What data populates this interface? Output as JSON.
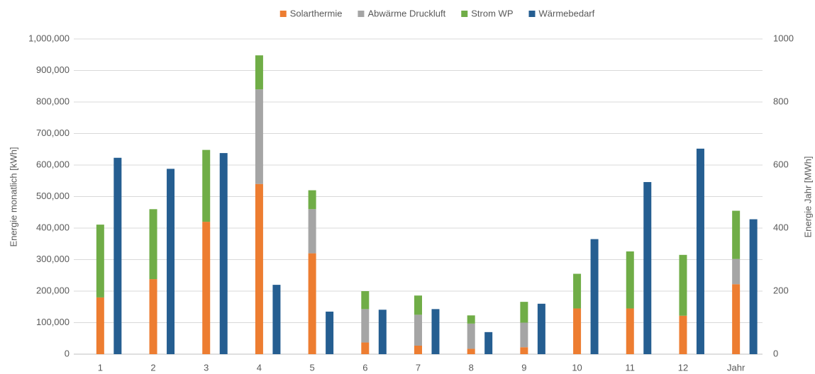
{
  "chart_data": {
    "type": "bar",
    "categories": [
      "1",
      "2",
      "3",
      "4",
      "5",
      "6",
      "7",
      "8",
      "9",
      "10",
      "11",
      "12",
      "Jahr"
    ],
    "category_axis": [
      "y",
      "y",
      "y",
      "y",
      "y",
      "y",
      "y",
      "y",
      "y",
      "y",
      "y",
      "y",
      "y2"
    ],
    "series": [
      {
        "name": "Solarthermie",
        "color": "#ed7d31",
        "stack": true,
        "values": [
          180000,
          238000,
          420000,
          540000,
          320000,
          37000,
          27000,
          17000,
          22000,
          145000,
          145000,
          122000,
          222
        ]
      },
      {
        "name": "Abwärme Druckluft",
        "color": "#a5a5a5",
        "stack": true,
        "values": [
          0,
          0,
          0,
          300000,
          140000,
          106000,
          98000,
          80000,
          78000,
          0,
          0,
          0,
          80
        ]
      },
      {
        "name": "Strom WP",
        "color": "#70ad47",
        "stack": true,
        "values": [
          231000,
          222000,
          228000,
          108000,
          60000,
          57000,
          61000,
          26000,
          66000,
          110000,
          181000,
          193000,
          153
        ]
      },
      {
        "name": "Wärmebedarf",
        "color": "#255e91",
        "stack": false,
        "values": [
          623000,
          588000,
          638000,
          220000,
          135000,
          141000,
          143000,
          70000,
          160000,
          365000,
          546000,
          652000,
          428
        ]
      }
    ],
    "ylabel": "Energie monatlich [kWh]",
    "y2label": "Energie Jahr [MWh]",
    "ylim": [
      0,
      1000000
    ],
    "yticks": [
      0,
      {
        "value": 100000,
        "label": "100,000"
      },
      {
        "value": 200000,
        "label": "200,000"
      },
      {
        "value": 300000,
        "label": "300,000"
      },
      {
        "value": 400000,
        "label": "400,000"
      },
      {
        "value": 500000,
        "label": "500,000"
      },
      {
        "value": 600000,
        "label": "600,000"
      },
      {
        "value": 700000,
        "label": "700,000"
      },
      {
        "value": 800000,
        "label": "800,000"
      },
      {
        "value": 900000,
        "label": "900,000"
      },
      {
        "value": 1000000,
        "label": "1,000,000"
      }
    ],
    "y2lim": [
      0,
      1000
    ],
    "y2ticks": [
      0,
      200,
      400,
      600,
      800,
      1000
    ],
    "grid": true,
    "legend": "top"
  }
}
